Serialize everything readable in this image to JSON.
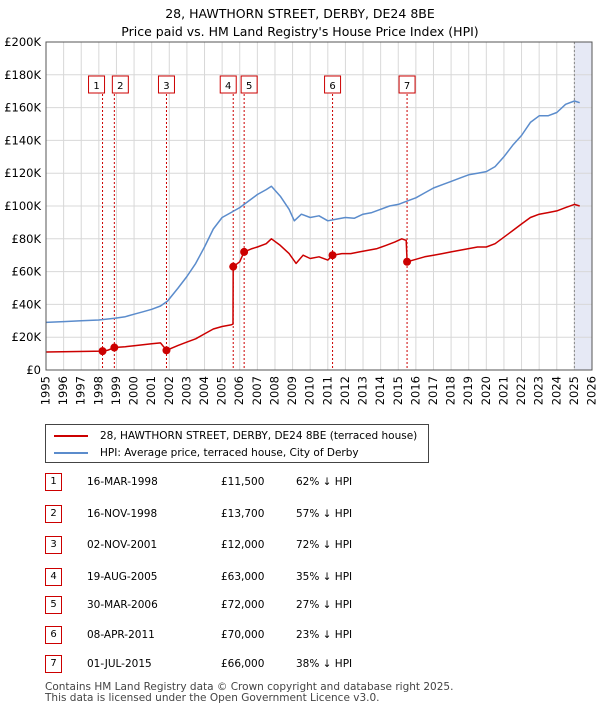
{
  "title_line1": "28, HAWTHORN STREET, DERBY, DE24 8BE",
  "title_line2": "Price paid vs. HM Land Registry's House Price Index (HPI)",
  "colors": {
    "price": "#cc0000",
    "hpi": "#5b8ccc",
    "grid": "#d8d8d8",
    "shade": "#e6e9f5"
  },
  "legend": {
    "price_label": "28, HAWTHORN STREET, DERBY, DE24 8BE (terraced house)",
    "hpi_label": "HPI: Average price, terraced house, City of Derby"
  },
  "sales": [
    {
      "num": "1",
      "date": "16-MAR-1998",
      "price": "£11,500",
      "pct": "62% ↓ HPI"
    },
    {
      "num": "2",
      "date": "16-NOV-1998",
      "price": "£13,700",
      "pct": "57% ↓ HPI"
    },
    {
      "num": "3",
      "date": "02-NOV-2001",
      "price": "£12,000",
      "pct": "72% ↓ HPI"
    },
    {
      "num": "4",
      "date": "19-AUG-2005",
      "price": "£63,000",
      "pct": "35% ↓ HPI"
    },
    {
      "num": "5",
      "date": "30-MAR-2006",
      "price": "£72,000",
      "pct": "27% ↓ HPI"
    },
    {
      "num": "6",
      "date": "08-APR-2011",
      "price": "£70,000",
      "pct": "23% ↓ HPI"
    },
    {
      "num": "7",
      "date": "01-JUL-2015",
      "price": "£66,000",
      "pct": "38% ↓ HPI"
    }
  ],
  "footer_line1": "Contains HM Land Registry data © Crown copyright and database right 2025.",
  "footer_line2": "This data is licensed under the Open Government Licence v3.0.",
  "chart_data": {
    "type": "line",
    "xlim": [
      1995,
      2026
    ],
    "ylim": [
      0,
      200000
    ],
    "y_ticks": [
      0,
      20000,
      40000,
      60000,
      80000,
      100000,
      120000,
      140000,
      160000,
      180000,
      200000
    ],
    "y_tick_labels": [
      "£0",
      "£20K",
      "£40K",
      "£60K",
      "£80K",
      "£100K",
      "£120K",
      "£140K",
      "£160K",
      "£180K",
      "£200K"
    ],
    "x_ticks": [
      1995,
      1996,
      1997,
      1998,
      1999,
      2000,
      2001,
      2002,
      2003,
      2004,
      2005,
      2006,
      2007,
      2008,
      2009,
      2010,
      2011,
      2012,
      2013,
      2014,
      2015,
      2016,
      2017,
      2018,
      2019,
      2020,
      2021,
      2022,
      2023,
      2024,
      2025,
      2026
    ],
    "forecast_start": 2025.0,
    "sale_markers": [
      {
        "label": "1",
        "x": 1998.21,
        "y": 11500
      },
      {
        "label": "2",
        "x": 1998.88,
        "y": 13700
      },
      {
        "label": "3",
        "x": 2001.84,
        "y": 12000
      },
      {
        "label": "4",
        "x": 2005.63,
        "y": 63000
      },
      {
        "label": "5",
        "x": 2006.25,
        "y": 72000
      },
      {
        "label": "6",
        "x": 2011.27,
        "y": 70000
      },
      {
        "label": "7",
        "x": 2015.5,
        "y": 66000
      }
    ],
    "series": [
      {
        "name": "HPI: Average price, terraced house, City of Derby",
        "x": [
          1995,
          1996,
          1997,
          1998,
          1998.9,
          1999.5,
          2000,
          2000.5,
          2001,
          2001.5,
          2001.9,
          2002.5,
          2003,
          2003.5,
          2004,
          2004.5,
          2005,
          2005.5,
          2006,
          2006.5,
          2007,
          2007.5,
          2007.8,
          2008.3,
          2008.8,
          2009.1,
          2009.5,
          2010,
          2010.5,
          2011,
          2011.5,
          2012,
          2012.5,
          2013,
          2013.5,
          2014,
          2014.5,
          2015,
          2015.5,
          2016,
          2016.5,
          2017,
          2017.5,
          2018,
          2018.5,
          2019,
          2019.5,
          2020,
          2020.5,
          2021,
          2021.5,
          2022,
          2022.5,
          2023,
          2023.5,
          2024,
          2024.5,
          2025,
          2025.3
        ],
        "values": [
          29000,
          29500,
          30000,
          30500,
          31500,
          32500,
          34000,
          35500,
          37000,
          39000,
          42000,
          50000,
          57000,
          65000,
          75000,
          86000,
          93000,
          96000,
          99000,
          103000,
          107000,
          110000,
          112000,
          106000,
          98000,
          91000,
          95000,
          93000,
          94000,
          91000,
          92000,
          93000,
          92500,
          95000,
          96000,
          98000,
          100000,
          101000,
          103000,
          105000,
          108000,
          111000,
          113000,
          115000,
          117000,
          119000,
          120000,
          121000,
          124000,
          130000,
          137000,
          143000,
          151000,
          155000,
          155000,
          157000,
          162000,
          164000,
          163000
        ]
      },
      {
        "name": "28, HAWTHORN STREET, DERBY, DE24 8BE (terraced house)",
        "x": [
          1995,
          1998.21,
          1998.5,
          1998.88,
          1999.5,
          2000,
          2000.5,
          2001,
          2001.5,
          2001.84,
          2002.5,
          2003,
          2003.5,
          2004,
          2004.5,
          2005,
          2005.5,
          2005.62,
          2005.63,
          2006,
          2006.25,
          2006.7,
          2007,
          2007.5,
          2007.8,
          2008.3,
          2008.8,
          2009.2,
          2009.6,
          2010,
          2010.5,
          2011,
          2011.27,
          2011.8,
          2012.3,
          2012.8,
          2013.3,
          2013.8,
          2014.3,
          2014.8,
          2015.2,
          2015.45,
          2015.5,
          2016,
          2016.5,
          2017,
          2017.5,
          2018,
          2018.5,
          2019,
          2019.5,
          2020,
          2020.5,
          2021,
          2021.5,
          2022,
          2022.5,
          2023,
          2023.5,
          2024,
          2024.5,
          2025,
          2025.3
        ],
        "values": [
          11000,
          11500,
          12000,
          13700,
          14200,
          14800,
          15400,
          16000,
          16500,
          12000,
          15000,
          17000,
          19000,
          22000,
          25000,
          26500,
          27500,
          28000,
          63000,
          66000,
          72000,
          74000,
          75000,
          77000,
          80000,
          76000,
          71000,
          65000,
          70000,
          68000,
          69000,
          67000,
          70000,
          71000,
          71000,
          72000,
          73000,
          74000,
          76000,
          78000,
          80000,
          79000,
          66000,
          67500,
          69000,
          70000,
          71000,
          72000,
          73000,
          74000,
          75000,
          75000,
          77000,
          81000,
          85000,
          89000,
          93000,
          95000,
          96000,
          97000,
          99000,
          101000,
          100000
        ]
      }
    ]
  }
}
